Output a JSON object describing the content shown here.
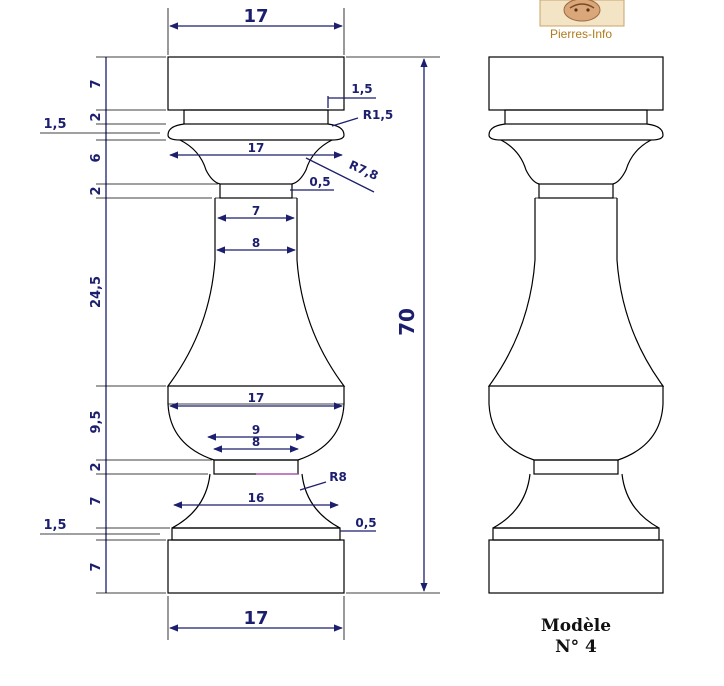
{
  "logo": {
    "text": "Pierres-Info"
  },
  "caption": {
    "line1": "Modèle",
    "line2": "N° 4"
  },
  "dimensions": {
    "top_width": "17",
    "bottom_width": "17",
    "total_height": "70",
    "cap_height": "7",
    "neck_height": "2",
    "collar_offset": "1,5",
    "top_flare_height": "6",
    "upper_ring_height": "2",
    "body_height": "24,5",
    "belly_height": "9,5",
    "lower_ring_height": "2",
    "foot_height": "7",
    "base_offset": "1,5",
    "base_height": "7",
    "top_collar_radius": "R1,5",
    "flare_width": "17",
    "flare_radius": "R7,8",
    "upper_ring_step": "0,5",
    "upper_ring_width": "7",
    "body_top_width": "8",
    "belly_width": "17",
    "lower_ring_outer": "9",
    "lower_ring_inner": "8",
    "foot_radius": "R8",
    "foot_width": "16",
    "base_step": "0,5",
    "cap_step": "1,5"
  }
}
